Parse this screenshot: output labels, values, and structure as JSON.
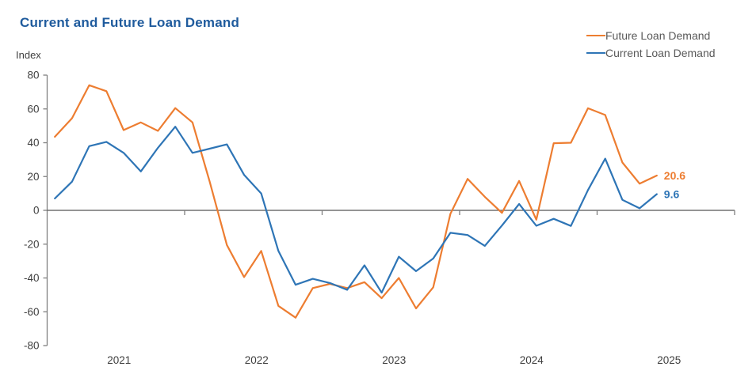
{
  "chart_data": {
    "type": "line",
    "title": "Current and Future Loan Demand",
    "ylabel": "Index",
    "xlabel": "",
    "xlim": [
      2021,
      2026
    ],
    "ylim": [
      -80,
      80
    ],
    "yticks": [
      80,
      60,
      40,
      20,
      0,
      -20,
      -40,
      -60,
      -80
    ],
    "x_year_labels": [
      "2021",
      "2022",
      "2023",
      "2024",
      "2025"
    ],
    "x_boundary_ticks": [
      2022,
      2023,
      2024,
      2025,
      2026
    ],
    "grid": "off",
    "zero_line": true,
    "legend_position": "top-right",
    "axis_color": "#808080",
    "zero_line_color": "#555555",
    "tick_label_color": "#3f3f3f",
    "title_color": "#1f5b9d",
    "x": [
      2021.056,
      2021.181,
      2021.306,
      2021.431,
      2021.556,
      2021.681,
      2021.806,
      2021.932,
      2022.057,
      2022.182,
      2022.307,
      2022.432,
      2022.557,
      2022.682,
      2022.807,
      2022.932,
      2023.057,
      2023.182,
      2023.308,
      2023.433,
      2023.558,
      2023.683,
      2023.808,
      2023.933,
      2024.058,
      2024.183,
      2024.308,
      2024.433,
      2024.558,
      2024.684,
      2024.809,
      2024.934,
      2025.059,
      2025.184,
      2025.309,
      2025.434
    ],
    "series": [
      {
        "name": "Future Loan Demand",
        "color": "#ED7D31",
        "end_label": "20.6",
        "values": [
          43.5,
          54.5,
          74,
          70.5,
          47.5,
          52,
          47,
          60.5,
          52,
          17,
          -20.5,
          -39.5,
          -24,
          -56.5,
          -63.5,
          -46,
          -43.5,
          -46,
          -42.5,
          -52,
          -40,
          -58,
          -45.5,
          -2,
          18.6,
          8,
          -1.5,
          17.4,
          -5.5,
          39.7,
          40,
          60.4,
          56.4,
          28.3,
          15.8,
          20.6
        ]
      },
      {
        "name": "Current Loan Demand",
        "color": "#2E75B6",
        "end_label": "9.6",
        "values": [
          7,
          17,
          38,
          40.5,
          34,
          23,
          37,
          49.5,
          34,
          36.5,
          39,
          21,
          10,
          -24,
          -44,
          -40.5,
          -43,
          -47,
          -32.5,
          -48.7,
          -27.4,
          -36,
          -28.5,
          -13.3,
          -14.6,
          -21,
          -9,
          3.8,
          -9.1,
          -5,
          -9.2,
          12,
          30.6,
          6.2,
          1.2,
          9.6
        ]
      }
    ]
  }
}
